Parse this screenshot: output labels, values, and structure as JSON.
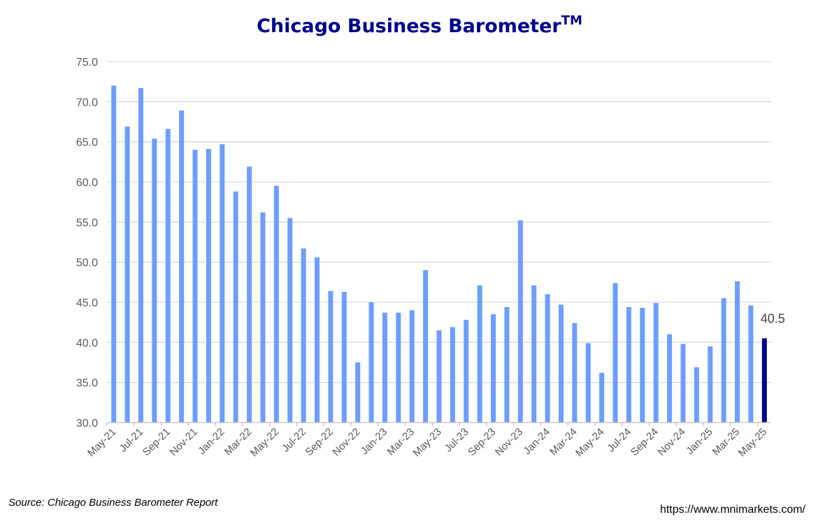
{
  "colors": {
    "bar": "#6d9eff",
    "highlight": "#00008b",
    "title": "#00008b",
    "grid": "#d9d9d9",
    "axis": "#bfbfbf"
  },
  "footer": {
    "source": "Source: Chicago Business Barometer Report",
    "url": "https://www.mnimarkets.com/"
  },
  "chart_data": {
    "type": "bar",
    "title": "Chicago Business Barometer",
    "title_superscript": "TM",
    "xlabel": "",
    "ylabel": "",
    "ylim": [
      30,
      75
    ],
    "yticks": [
      "30.0",
      "35.0",
      "40.0",
      "45.0",
      "50.0",
      "55.0",
      "60.0",
      "65.0",
      "70.0",
      "75.0"
    ],
    "grid": true,
    "tick_labels": [
      "May-21",
      "Jul-21",
      "Sep-21",
      "Nov-21",
      "Jan-22",
      "Mar-22",
      "May-22",
      "Jul-22",
      "Sep-22",
      "Nov-22",
      "Jan-23",
      "Mar-23",
      "May-23",
      "Jul-23",
      "Sep-23",
      "Nov-23",
      "Jan-24",
      "Mar-24",
      "May-24",
      "Jul-24",
      "Sep-24",
      "Nov-24",
      "Jan-25",
      "Mar-25",
      "May-25"
    ],
    "categories": [
      "May-21",
      "Jun-21",
      "Jul-21",
      "Aug-21",
      "Sep-21",
      "Oct-21",
      "Nov-21",
      "Dec-21",
      "Jan-22",
      "Feb-22",
      "Mar-22",
      "Apr-22",
      "May-22",
      "Jun-22",
      "Jul-22",
      "Aug-22",
      "Sep-22",
      "Oct-22",
      "Nov-22",
      "Dec-22",
      "Jan-23",
      "Feb-23",
      "Mar-23",
      "Apr-23",
      "May-23",
      "Jun-23",
      "Jul-23",
      "Aug-23",
      "Sep-23",
      "Oct-23",
      "Nov-23",
      "Dec-23",
      "Jan-24",
      "Feb-24",
      "Mar-24",
      "Apr-24",
      "May-24",
      "Jun-24",
      "Jul-24",
      "Aug-24",
      "Sep-24",
      "Oct-24",
      "Nov-24",
      "Dec-24",
      "Jan-25",
      "Feb-25",
      "Mar-25",
      "Apr-25",
      "May-25"
    ],
    "values": [
      72.0,
      66.9,
      71.7,
      65.4,
      66.6,
      68.9,
      64.0,
      64.1,
      64.7,
      58.8,
      61.9,
      56.2,
      59.5,
      55.5,
      51.7,
      50.6,
      46.4,
      46.3,
      37.5,
      45.0,
      43.7,
      43.7,
      44.0,
      49.0,
      41.5,
      41.9,
      42.8,
      47.1,
      43.5,
      44.4,
      55.2,
      47.1,
      46.0,
      44.7,
      42.4,
      39.9,
      36.2,
      47.4,
      44.4,
      44.3,
      44.9,
      41.0,
      39.8,
      36.9,
      39.5,
      45.5,
      47.6,
      44.6,
      40.5
    ],
    "highlight_last": true,
    "annotations": [
      {
        "category": "May-25",
        "text": "40.5"
      }
    ]
  }
}
